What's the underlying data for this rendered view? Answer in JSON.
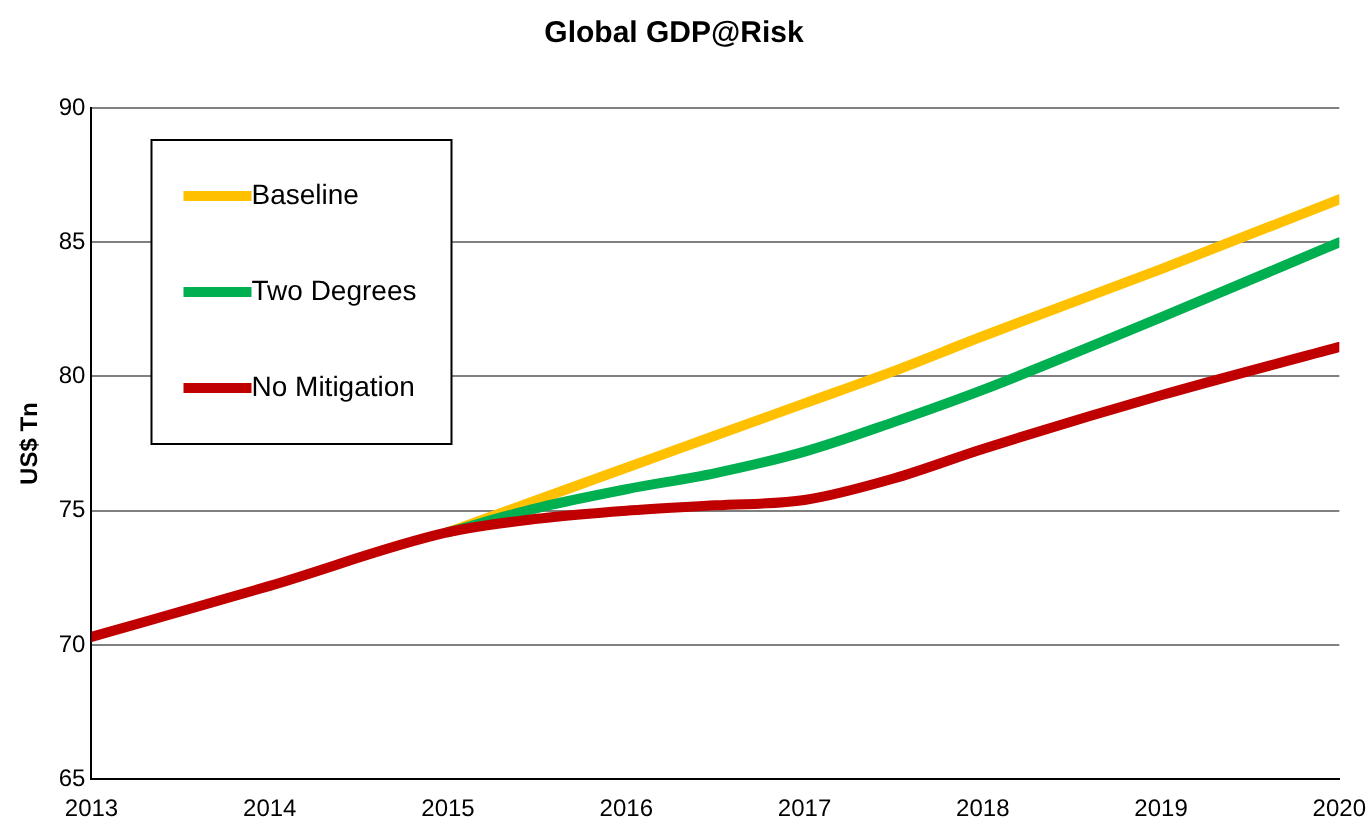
{
  "chart_data": {
    "type": "line",
    "title": "Global GDP@Risk",
    "ylabel": "US$ Tn",
    "x": [
      2013,
      2014,
      2015,
      2015.5,
      2016,
      2016.5,
      2017,
      2017.5,
      2018,
      2019,
      2020
    ],
    "series": [
      {
        "name": "Baseline",
        "color": "#ffc000",
        "values": [
          null,
          null,
          74.2,
          75.4,
          76.6,
          77.8,
          79.0,
          80.2,
          81.5,
          84.0,
          86.6
        ]
      },
      {
        "name": "Two Degrees",
        "color": "#00b050",
        "values": [
          null,
          null,
          74.2,
          75.1,
          75.8,
          76.4,
          77.2,
          78.3,
          79.5,
          82.2,
          85.0
        ]
      },
      {
        "name": "No Mitigation",
        "color": "#c00000",
        "values": [
          70.3,
          72.2,
          74.2,
          74.7,
          75.0,
          75.2,
          75.4,
          76.2,
          77.3,
          79.3,
          81.1
        ]
      }
    ],
    "xlim": [
      2013,
      2020
    ],
    "xticks": [
      2013,
      2014,
      2015,
      2016,
      2017,
      2018,
      2019,
      2020
    ],
    "ylim": [
      65,
      90
    ],
    "yticks": [
      65,
      70,
      75,
      80,
      85,
      90
    ],
    "grid": "y",
    "legend": "top left",
    "marker": "none",
    "line_style": "solid"
  }
}
